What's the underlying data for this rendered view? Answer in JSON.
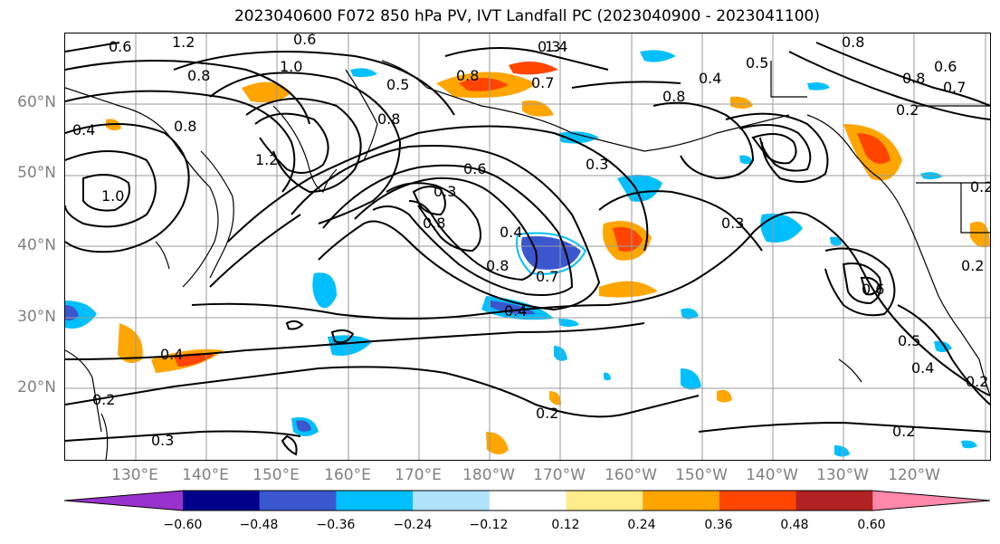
{
  "title": "2023040600 F072 850 hPa PV, IVT Landfall PC (2023040900 - 2023041100)",
  "lat_labels": [
    "60°N",
    "50°N",
    "40°N",
    "30°N",
    "20°N"
  ],
  "lon_labels": [
    "130°E",
    "140°E",
    "150°E",
    "160°E",
    "170°E",
    "180°W",
    "170°W",
    "160°W",
    "150°W",
    "140°W",
    "130°W",
    "120°W"
  ],
  "colorbar": {
    "colors": [
      "#9932cc",
      "#00008b",
      "#3a57d0",
      "#00bfff",
      "#afe3fa",
      "#ffffff",
      "#ffec8b",
      "#ffa500",
      "#ff4500",
      "#b22222",
      "#ff88aa"
    ],
    "ticks": [
      "−0.60",
      "−0.48",
      "−0.36",
      "−0.24",
      "−0.12",
      "0.12",
      "0.24",
      "0.36",
      "0.48",
      "0.60"
    ]
  },
  "contour_labels": [
    "0.6",
    "1.2",
    "0.6",
    "1.0",
    "0.8",
    "0.4",
    "0.8",
    "1.2",
    "1.0",
    "0.8",
    "0.5",
    "0.8",
    "0.3",
    "0.7",
    "1.4",
    "0.8",
    "0.4",
    "0.5",
    "0.8",
    "0.6",
    "0.8",
    "0.7",
    "0.2",
    "0.3",
    "0.3",
    "0.8",
    "0.6",
    "0.4",
    "0.8",
    "0.7",
    "0.4",
    "0.3",
    "0.4",
    "0.2",
    "0.2",
    "0.3",
    "0.2",
    "0.6",
    "0.5",
    "0.4",
    "0.2",
    "0.2",
    "0.2"
  ]
}
